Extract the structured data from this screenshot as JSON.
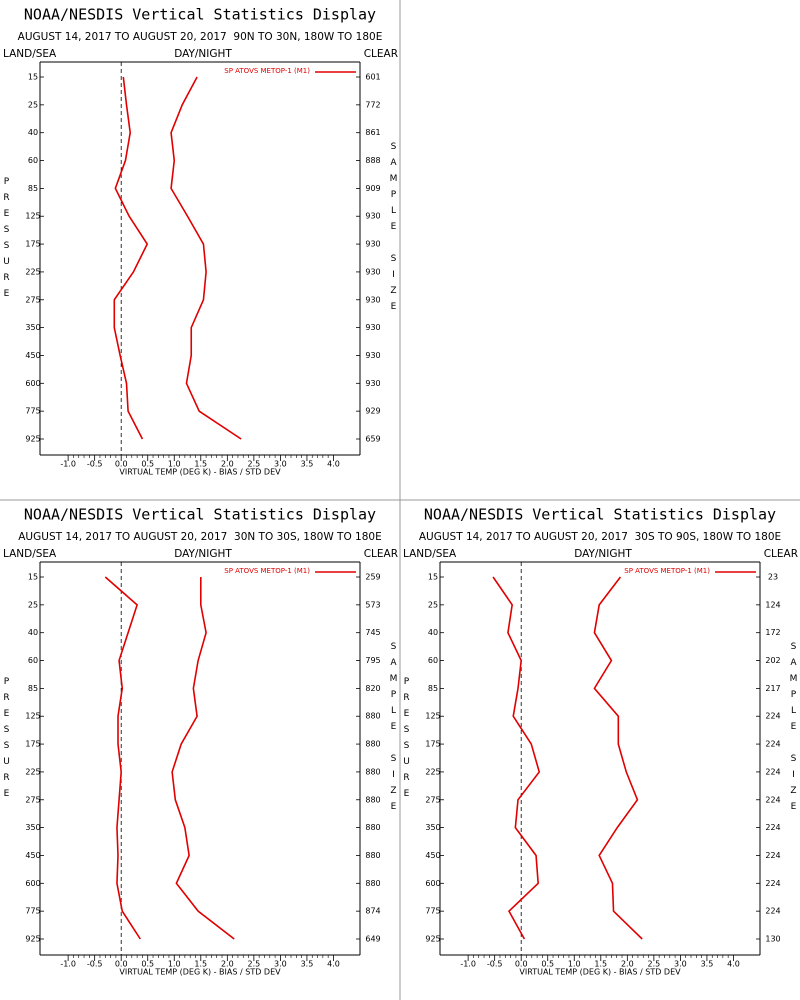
{
  "chart_data": [
    {
      "type": "line",
      "title": "NOAA/NESDIS Vertical Statistics Display",
      "subtitle": "AUGUST 14, 2017 TO AUGUST 20, 2017  90N TO 30N, 180W TO 180E",
      "left_label": "LAND/SEA",
      "center_label": "DAY/NIGHT",
      "right_label": "CLEAR",
      "xlabel": "VIRTUAL TEMP (DEG K) - BIAS / STD DEV",
      "ylabel": "PRESSURE",
      "y2label": "SAMPLE SIZE",
      "categories": [
        15,
        25,
        40,
        60,
        85,
        125,
        175,
        225,
        275,
        350,
        450,
        600,
        775,
        925
      ],
      "sample_size": [
        601,
        772,
        861,
        888,
        909,
        930,
        930,
        930,
        930,
        930,
        930,
        930,
        929,
        659
      ],
      "series": [
        {
          "name": "SP ATOVS METOP-1 (M1)",
          "color": "#e00000",
          "values": [
            0.04,
            0.1,
            0.17,
            0.08,
            -0.11,
            0.15,
            0.49,
            0.23,
            -0.13,
            -0.13,
            -0.02,
            0.1,
            0.13,
            0.4
          ]
        },
        {
          "color": "#e00000",
          "values": [
            1.43,
            1.15,
            0.94,
            1.0,
            0.94,
            1.25,
            1.55,
            1.6,
            1.55,
            1.32,
            1.32,
            1.23,
            1.47,
            2.26
          ]
        }
      ],
      "xlim": [
        -1.53,
        4.5
      ],
      "xticks": [
        {
          "value": -1,
          "label": "-1.0"
        },
        -0.5,
        {
          "value": 0,
          "label": "0.0"
        },
        0.5,
        {
          "value": 1,
          "label": "1.0"
        },
        1.5,
        {
          "value": 2,
          "label": "2.0"
        },
        2.5,
        {
          "value": 3,
          "label": "3.0"
        },
        3.5,
        {
          "value": 4,
          "label": "4.0"
        }
      ]
    },
    {
      "type": "line",
      "title": "NOAA/NESDIS Vertical Statistics Display",
      "subtitle": "AUGUST 14, 2017 TO AUGUST 20, 2017  30N TO 30S, 180W TO 180E",
      "left_label": "LAND/SEA",
      "center_label": "DAY/NIGHT",
      "right_label": "CLEAR",
      "xlabel": "VIRTUAL TEMP (DEG K) - BIAS / STD DEV",
      "ylabel": "PRESSURE",
      "y2label": "SAMPLE SIZE",
      "categories": [
        15,
        25,
        40,
        60,
        85,
        125,
        175,
        225,
        275,
        350,
        450,
        600,
        775,
        925
      ],
      "sample_size": [
        259,
        573,
        745,
        795,
        820,
        880,
        880,
        880,
        880,
        880,
        880,
        880,
        874,
        649
      ],
      "series": [
        {
          "name": "SP ATOVS METOP-1 (M1)",
          "color": "#e00000",
          "values": [
            -0.3,
            0.3,
            0.13,
            -0.04,
            0.02,
            -0.06,
            -0.06,
            0.0,
            -0.04,
            -0.08,
            -0.06,
            -0.08,
            0.02,
            0.36
          ]
        },
        {
          "color": "#e00000",
          "values": [
            1.5,
            1.5,
            1.6,
            1.45,
            1.36,
            1.43,
            1.13,
            0.96,
            1.02,
            1.2,
            1.28,
            1.04,
            1.45,
            2.13
          ]
        }
      ],
      "xlim": [
        -1.53,
        4.5
      ],
      "xticks": [
        {
          "value": -1,
          "label": "-1.0"
        },
        -0.5,
        {
          "value": 0,
          "label": "0.0"
        },
        0.5,
        {
          "value": 1,
          "label": "1.0"
        },
        1.5,
        {
          "value": 2,
          "label": "2.0"
        },
        2.5,
        {
          "value": 3,
          "label": "3.0"
        },
        3.5,
        {
          "value": 4,
          "label": "4.0"
        }
      ]
    },
    {
      "type": "line",
      "title": "NOAA/NESDIS Vertical Statistics Display",
      "subtitle": "AUGUST 14, 2017 TO AUGUST 20, 2017  30S TO 90S, 180W TO 180E",
      "left_label": "LAND/SEA",
      "center_label": "DAY/NIGHT",
      "right_label": "CLEAR",
      "xlabel": "VIRTUAL TEMP (DEG K) - BIAS / STD DEV",
      "ylabel": "PRESSURE",
      "y2label": "SAMPLE SIZE",
      "categories": [
        15,
        25,
        40,
        60,
        85,
        125,
        175,
        225,
        275,
        350,
        450,
        600,
        775,
        925
      ],
      "sample_size": [
        23,
        124,
        172,
        202,
        217,
        224,
        224,
        224,
        224,
        224,
        224,
        224,
        224,
        130
      ],
      "series": [
        {
          "name": "SP ATOVS METOP-1 (M1)",
          "color": "#e00000",
          "values": [
            -0.53,
            -0.17,
            -0.25,
            0.0,
            -0.06,
            -0.15,
            0.19,
            0.34,
            -0.06,
            -0.11,
            0.28,
            0.32,
            -0.23,
            0.06
          ]
        },
        {
          "color": "#e00000",
          "values": [
            1.87,
            1.47,
            1.38,
            1.7,
            1.38,
            1.83,
            1.83,
            1.98,
            2.19,
            1.81,
            1.47,
            1.72,
            1.74,
            2.28
          ]
        }
      ],
      "xlim": [
        -1.53,
        4.5
      ],
      "xticks": [
        {
          "value": -1,
          "label": "-1.0"
        },
        -0.5,
        {
          "value": 0,
          "label": "0.0"
        },
        0.5,
        {
          "value": 1,
          "label": "1.0"
        },
        1.5,
        {
          "value": 2,
          "label": "2.0"
        },
        2.5,
        {
          "value": 3,
          "label": "3.0"
        },
        3.5,
        {
          "value": 4,
          "label": "4.0"
        }
      ]
    }
  ]
}
